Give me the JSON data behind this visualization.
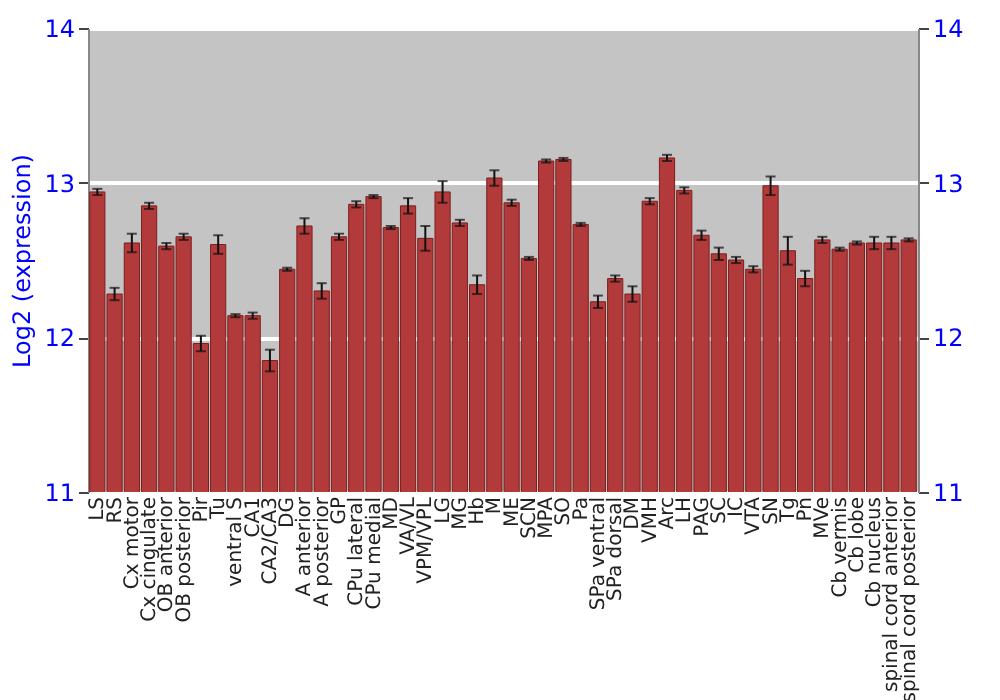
{
  "chart_data": {
    "type": "bar",
    "ylabel": "Log2 (expression)",
    "categories": [
      "LS",
      "RS",
      "Cx motor",
      "Cx cingulate",
      "OB anterior",
      "OB posterior",
      "Pir",
      "Tu",
      "ventral S",
      "CA1",
      "CA2/CA3",
      "DG",
      "A anterior",
      "A posterior",
      "GP",
      "CPu lateral",
      "CPu medial",
      "MD",
      "VA/VL",
      "VPM/VPL",
      "LG",
      "MG",
      "Hb",
      "M",
      "ME",
      "SCN",
      "MPA",
      "SO",
      "Pa",
      "SPa ventral",
      "SPa dorsal",
      "DM",
      "VMH",
      "Arc",
      "LH",
      "PAG",
      "SC",
      "IC",
      "VTA",
      "SN",
      "Tg",
      "Pn",
      "MVe",
      "Cb vermis",
      "Cb lobe",
      "Cb nucleus",
      "spinal cord anterior",
      "spinal cord posterior"
    ],
    "values": [
      12.94,
      12.28,
      12.61,
      12.85,
      12.59,
      12.65,
      11.96,
      12.6,
      12.14,
      12.14,
      11.85,
      12.44,
      12.72,
      12.3,
      12.65,
      12.86,
      12.91,
      12.71,
      12.85,
      12.64,
      12.94,
      12.74,
      12.34,
      13.03,
      12.87,
      12.51,
      13.14,
      13.15,
      12.73,
      12.23,
      12.38,
      12.28,
      12.88,
      13.16,
      12.95,
      12.66,
      12.54,
      12.5,
      12.44,
      12.98,
      12.56,
      12.38,
      12.63,
      12.57,
      12.61,
      12.61,
      12.61,
      12.63
    ],
    "errors": [
      0.02,
      0.04,
      0.06,
      0.02,
      0.02,
      0.02,
      0.05,
      0.06,
      0.01,
      0.02,
      0.07,
      0.01,
      0.05,
      0.05,
      0.02,
      0.02,
      0.01,
      0.01,
      0.05,
      0.08,
      0.07,
      0.02,
      0.06,
      0.05,
      0.02,
      0.01,
      0.01,
      0.01,
      0.01,
      0.04,
      0.02,
      0.05,
      0.02,
      0.02,
      0.02,
      0.03,
      0.04,
      0.02,
      0.02,
      0.06,
      0.09,
      0.05,
      0.02,
      0.01,
      0.01,
      0.04,
      0.04,
      0.01
    ],
    "color": "#b33a3a",
    "ylim": [
      11,
      14
    ],
    "yticks": [
      11,
      12,
      13,
      14
    ],
    "y2lim": [
      11,
      14
    ],
    "y2ticks": [
      11,
      12,
      13,
      14
    ],
    "grid": "y"
  }
}
